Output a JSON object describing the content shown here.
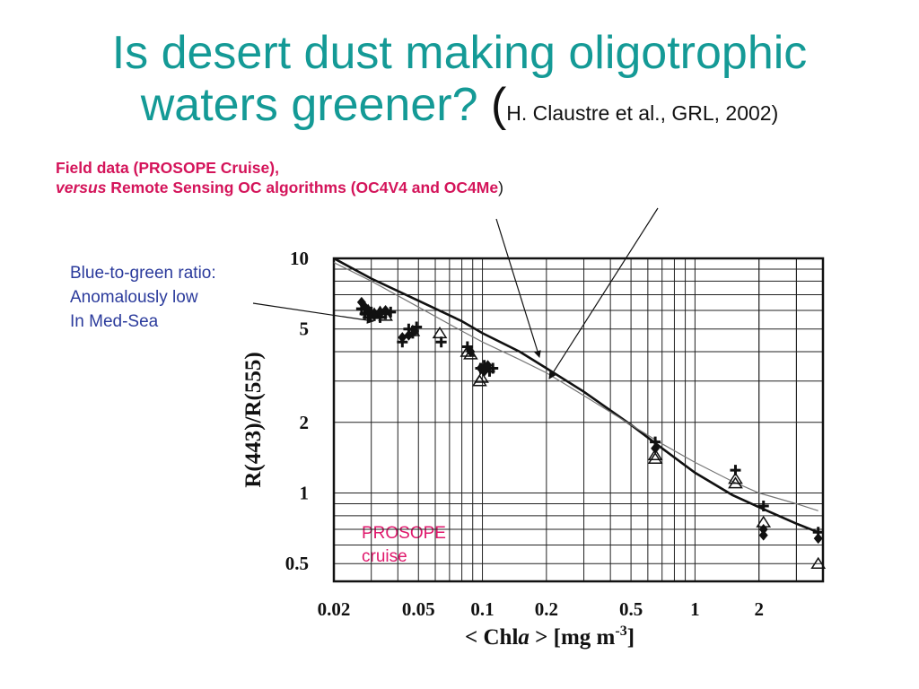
{
  "slide": {
    "title_line1": "Is desert dust making oligotrophic",
    "title_line2": "waters greener?",
    "title_paren_open": "(",
    "title_citation": "H. Claustre et al., GRL, 2002)",
    "subtitle_line1": "Field data (PROSOPE Cruise),",
    "subtitle_versus": "versus",
    "subtitle_rest": " Remote Sensing OC algorithms  (OC4V4 and OC4Me",
    "subtitle_close": ")",
    "note_line1": "Blue-to-green ratio:",
    "note_line2": "Anomalously low",
    "note_line3": "In Med-Sea",
    "prosope_line1": "PROSOPE",
    "prosope_line2": "cruise"
  },
  "colors": {
    "title": "#149a96",
    "subtitle": "#d4145a",
    "note": "#2b3b9c",
    "prosope": "#e0186c"
  },
  "chart_data": {
    "type": "scatter",
    "xscale": "log",
    "yscale": "log",
    "xlim": [
      0.02,
      4
    ],
    "ylim": [
      0.42,
      10
    ],
    "xlabel_pre": "< Chl",
    "xlabel_ital": "a",
    "xlabel_post": " > [mg m",
    "xlabel_sup": "-3",
    "xlabel_end": "]",
    "ylabel": "R(443)/R(555)",
    "xticks": [
      0.02,
      0.05,
      0.1,
      0.2,
      0.5,
      1,
      2
    ],
    "xtick_labels": [
      "0.02",
      "0.05",
      "0.1",
      "0.2",
      "0.5",
      "1",
      "2"
    ],
    "yticks": [
      10,
      5,
      2,
      1,
      0.5
    ],
    "ytick_labels": [
      "10",
      "5",
      "2",
      "1",
      "0.5"
    ],
    "grid": true,
    "series": [
      {
        "marker": "cross",
        "x": [
          0.027,
          0.028,
          0.029,
          0.03,
          0.031,
          0.033,
          0.035,
          0.037,
          0.042,
          0.045,
          0.047,
          0.049,
          0.064,
          0.085,
          0.098,
          0.102,
          0.108,
          0.112,
          0.65,
          1.55,
          2.1,
          3.8
        ],
        "y": [
          6.1,
          5.8,
          5.6,
          5.9,
          5.7,
          5.6,
          5.8,
          5.9,
          4.4,
          5.0,
          4.8,
          5.1,
          4.4,
          4.2,
          3.4,
          3.5,
          3.3,
          3.4,
          1.65,
          1.25,
          0.88,
          0.68
        ]
      },
      {
        "marker": "diamond",
        "x": [
          0.027,
          0.028,
          0.029,
          0.031,
          0.033,
          0.035,
          0.042,
          0.045,
          0.048,
          0.088,
          0.098,
          0.102,
          0.106,
          0.65,
          2.1,
          2.1,
          3.8
        ],
        "y": [
          6.5,
          6.2,
          6.0,
          5.8,
          5.9,
          6.0,
          4.6,
          4.7,
          4.9,
          4.0,
          3.4,
          3.3,
          3.5,
          1.55,
          0.7,
          0.66,
          0.64
        ]
      },
      {
        "marker": "triangle",
        "x": [
          0.029,
          0.031,
          0.033,
          0.035,
          0.047,
          0.063,
          0.085,
          0.088,
          0.097,
          0.099,
          0.65,
          0.65,
          1.55,
          1.55,
          2.1,
          3.8
        ],
        "y": [
          6.0,
          5.8,
          5.9,
          5.7,
          4.9,
          4.8,
          4.0,
          3.9,
          3.0,
          3.1,
          1.45,
          1.4,
          1.15,
          1.1,
          0.75,
          0.5
        ]
      }
    ],
    "curves": [
      {
        "name": "OC4V4",
        "x": [
          0.02,
          0.03,
          0.05,
          0.08,
          0.1,
          0.15,
          0.2,
          0.3,
          0.5,
          0.7,
          1,
          1.5,
          2,
          3,
          3.8
        ],
        "y": [
          10.0,
          8.2,
          6.6,
          5.4,
          4.8,
          4.0,
          3.4,
          2.7,
          1.95,
          1.55,
          1.22,
          0.98,
          0.87,
          0.74,
          0.68
        ]
      },
      {
        "name": "OC4Me",
        "x": [
          0.02,
          0.03,
          0.05,
          0.08,
          0.1,
          0.15,
          0.2,
          0.3,
          0.5,
          0.7,
          1,
          1.5,
          2,
          3,
          3.8
        ],
        "y": [
          9.6,
          8.0,
          6.2,
          4.9,
          4.4,
          3.7,
          3.25,
          2.6,
          1.95,
          1.62,
          1.35,
          1.12,
          1.0,
          0.9,
          0.84
        ]
      }
    ]
  }
}
